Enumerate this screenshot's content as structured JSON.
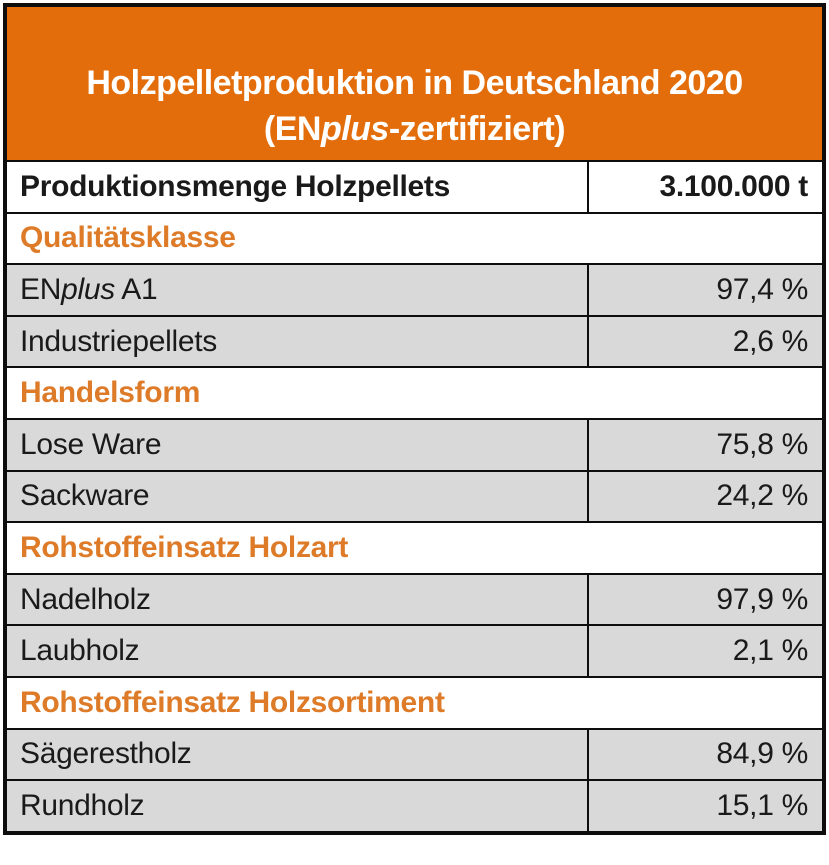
{
  "header": {
    "title_line1": "Holzpelletproduktion in Deutschland 2020",
    "title_line2": {
      "prefix": "(EN",
      "italic": "plus",
      "suffix": "-zertifiziert)"
    }
  },
  "summary": {
    "label": "Produktionsmenge Holzpellets",
    "value": "3.100.000 t"
  },
  "sections": [
    {
      "heading": "Qualitätsklasse",
      "rows": [
        {
          "label_parts": {
            "prefix": "EN",
            "italic": "plus",
            "suffix": " A1"
          },
          "value": "97,4 %"
        },
        {
          "label": "Industriepellets",
          "value": "2,6 %"
        }
      ]
    },
    {
      "heading": "Handelsform",
      "rows": [
        {
          "label": "Lose Ware",
          "value": "75,8 %"
        },
        {
          "label": "Sackware",
          "value": "24,2 %"
        }
      ]
    },
    {
      "heading": "Rohstoffeinsatz Holzart",
      "rows": [
        {
          "label": "Nadelholz",
          "value": "97,9 %"
        },
        {
          "label": "Laubholz",
          "value": "2,1 %"
        }
      ]
    },
    {
      "heading": "Rohstoffeinsatz Holzsortiment",
      "rows": [
        {
          "label": "Sägerestholz",
          "value": "84,9 %"
        },
        {
          "label": "Rundholz",
          "value": "15,1 %"
        }
      ]
    }
  ],
  "colors": {
    "header_background": "#e36d0a",
    "section_heading_text": "#dd7b28",
    "data_row_background": "#d9d9d9",
    "border": "#0d0d0d",
    "text": "#1a1a1a"
  },
  "chart_data": {
    "type": "table",
    "title": "Holzpelletproduktion in Deutschland 2020 (ENplus-zertifiziert)",
    "production_volume": {
      "label": "Produktionsmenge Holzpellets",
      "value": 3100000,
      "unit": "t",
      "display": "3.100.000 t"
    },
    "unit": "%",
    "groups": [
      {
        "category": "Qualitätsklasse",
        "items": [
          {
            "label": "ENplus A1",
            "value": 97.4
          },
          {
            "label": "Industriepellets",
            "value": 2.6
          }
        ]
      },
      {
        "category": "Handelsform",
        "items": [
          {
            "label": "Lose Ware",
            "value": 75.8
          },
          {
            "label": "Sackware",
            "value": 24.2
          }
        ]
      },
      {
        "category": "Rohstoffeinsatz Holzart",
        "items": [
          {
            "label": "Nadelholz",
            "value": 97.9
          },
          {
            "label": "Laubholz",
            "value": 2.1
          }
        ]
      },
      {
        "category": "Rohstoffeinsatz Holzsortiment",
        "items": [
          {
            "label": "Sägerestholz",
            "value": 84.9
          },
          {
            "label": "Rundholz",
            "value": 15.1
          }
        ]
      }
    ]
  }
}
